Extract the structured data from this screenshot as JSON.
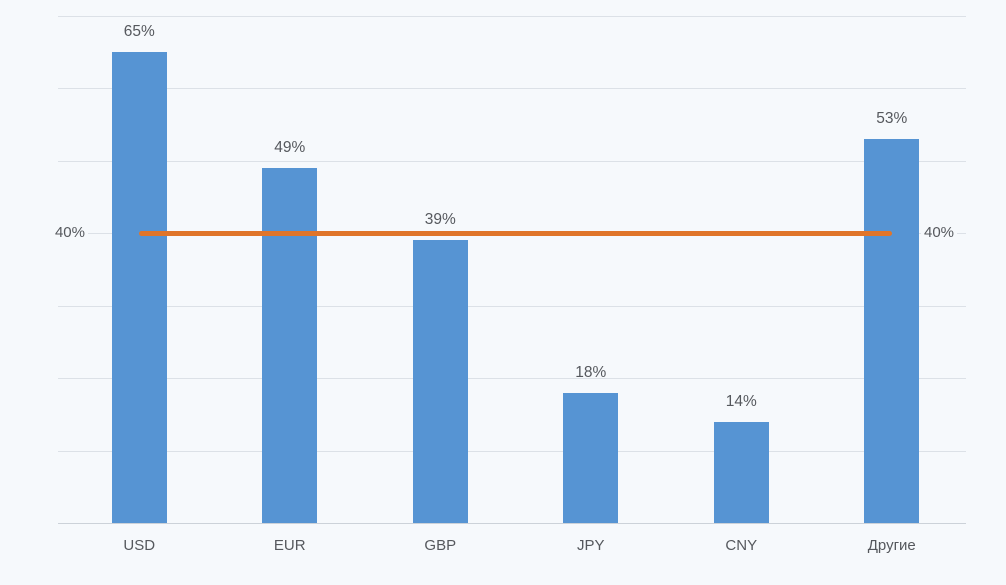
{
  "chart_data": {
    "type": "bar",
    "categories": [
      "USD",
      "EUR",
      "GBP",
      "JPY",
      "CNY",
      "Другие"
    ],
    "values": [
      65,
      49,
      39,
      18,
      14,
      53
    ],
    "value_labels": [
      "65%",
      "49%",
      "39%",
      "18%",
      "14%",
      "53%"
    ],
    "series": [
      {
        "name": "currency-share-bars",
        "type": "bar",
        "values": [
          65,
          49,
          39,
          18,
          14,
          53
        ]
      }
    ],
    "reference_line": {
      "value": 40,
      "left_label": "40%",
      "right_label": "40%"
    },
    "title": "",
    "xlabel": "",
    "ylabel": "",
    "ylim": [
      0,
      72
    ],
    "gridline_values": [
      10,
      20,
      30,
      40,
      50,
      60,
      70
    ],
    "grid": true,
    "legend": false,
    "colors": {
      "bar": "#5694d3",
      "reference_line": "#e0752a",
      "background": "#f6f9fc",
      "gridline": "#dce1e7",
      "axis_line": "#ccd2d9",
      "text": "#55585d"
    }
  }
}
